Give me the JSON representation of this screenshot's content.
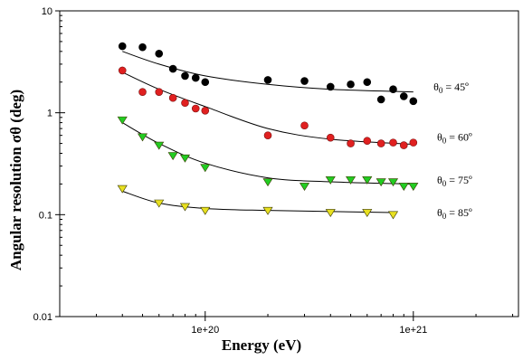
{
  "chart_data": {
    "type": "scatter",
    "title": "",
    "xlabel": "Energy (eV)",
    "ylabel": "Angular resolution σθ (deg)",
    "xscale": "log",
    "yscale": "log",
    "xlim": [
      2e+19,
      3.2e+21
    ],
    "ylim": [
      0.01,
      10
    ],
    "xticks": [
      1e+20,
      1e+21
    ],
    "xtick_labels": [
      "1e+20",
      "1e+21"
    ],
    "yticks": [
      0.01,
      0.1,
      1,
      10
    ],
    "ytick_labels": [
      "0.01",
      "0.1",
      "1",
      "10"
    ],
    "grid": false,
    "legend": "none; series labeled by annotations at right",
    "series": [
      {
        "name": "θ0 = 45º",
        "marker": "circle",
        "color": "#000000",
        "x": [
          4e+19,
          5e+19,
          6e+19,
          7e+19,
          8e+19,
          9e+19,
          1e+20,
          2e+20,
          3e+20,
          4e+20,
          5e+20,
          6e+20,
          7e+20,
          8e+20,
          9e+20,
          1e+21
        ],
        "y": [
          4.5,
          4.4,
          3.8,
          2.7,
          2.3,
          2.2,
          2.0,
          2.1,
          2.05,
          1.8,
          1.9,
          2.0,
          1.35,
          1.7,
          1.45,
          1.3
        ],
        "fit": [
          [
            4e+19,
            4.0
          ],
          [
            6e+19,
            3.0
          ],
          [
            1e+20,
            2.3
          ],
          [
            2e+20,
            1.9
          ],
          [
            4e+20,
            1.7
          ],
          [
            1e+21,
            1.6
          ]
        ]
      },
      {
        "name": "θ0 = 60º",
        "marker": "circle",
        "color": "#e02020",
        "x": [
          4e+19,
          5e+19,
          6e+19,
          7e+19,
          8e+19,
          9e+19,
          1e+20,
          2e+20,
          3e+20,
          4e+20,
          5e+20,
          6e+20,
          7e+20,
          8e+20,
          9e+20,
          1e+21
        ],
        "y": [
          2.6,
          1.6,
          1.6,
          1.4,
          1.25,
          1.1,
          1.05,
          0.6,
          0.75,
          0.57,
          0.5,
          0.53,
          0.5,
          0.51,
          0.48,
          0.51
        ],
        "fit": [
          [
            4e+19,
            2.5
          ],
          [
            6e+19,
            1.7
          ],
          [
            1e+20,
            1.15
          ],
          [
            2e+20,
            0.7
          ],
          [
            4e+20,
            0.55
          ],
          [
            1e+21,
            0.49
          ]
        ]
      },
      {
        "name": "θ0 = 75º",
        "marker": "triangle-down",
        "color": "#22cc22",
        "x": [
          4e+19,
          5e+19,
          6e+19,
          7e+19,
          8e+19,
          1e+20,
          2e+20,
          3e+20,
          4e+20,
          5e+20,
          6e+20,
          7e+20,
          8e+20,
          9e+20,
          1e+21
        ],
        "y": [
          0.85,
          0.58,
          0.48,
          0.38,
          0.36,
          0.29,
          0.21,
          0.19,
          0.22,
          0.22,
          0.22,
          0.21,
          0.21,
          0.19,
          0.19
        ],
        "fit": [
          [
            4e+19,
            0.8
          ],
          [
            6e+19,
            0.5
          ],
          [
            1e+20,
            0.32
          ],
          [
            2e+20,
            0.23
          ],
          [
            4e+20,
            0.21
          ],
          [
            1e+21,
            0.2
          ]
        ]
      },
      {
        "name": "θ0 = 85º",
        "marker": "triangle-down",
        "color": "#e8e020",
        "x": [
          4e+19,
          6e+19,
          8e+19,
          1e+20,
          2e+20,
          4e+20,
          6e+20,
          8e+20
        ],
        "y": [
          0.18,
          0.13,
          0.12,
          0.11,
          0.11,
          0.105,
          0.105,
          0.1
        ],
        "fit": [
          [
            4e+19,
            0.17
          ],
          [
            6e+19,
            0.13
          ],
          [
            1e+20,
            0.115
          ],
          [
            2e+20,
            0.11
          ],
          [
            8e+20,
            0.105
          ]
        ]
      }
    ],
    "annotations": [
      {
        "series": 0,
        "label": "θ0 = 45º",
        "at": [
          1.25e+21,
          1.8
        ]
      },
      {
        "series": 1,
        "label": "θ0 = 60º",
        "at": [
          1.3e+21,
          0.58
        ]
      },
      {
        "series": 2,
        "label": "θ0 = 75º",
        "at": [
          1.3e+21,
          0.22
        ]
      },
      {
        "series": 3,
        "label": "θ0 = 85º",
        "at": [
          1.3e+21,
          0.105
        ]
      }
    ]
  }
}
